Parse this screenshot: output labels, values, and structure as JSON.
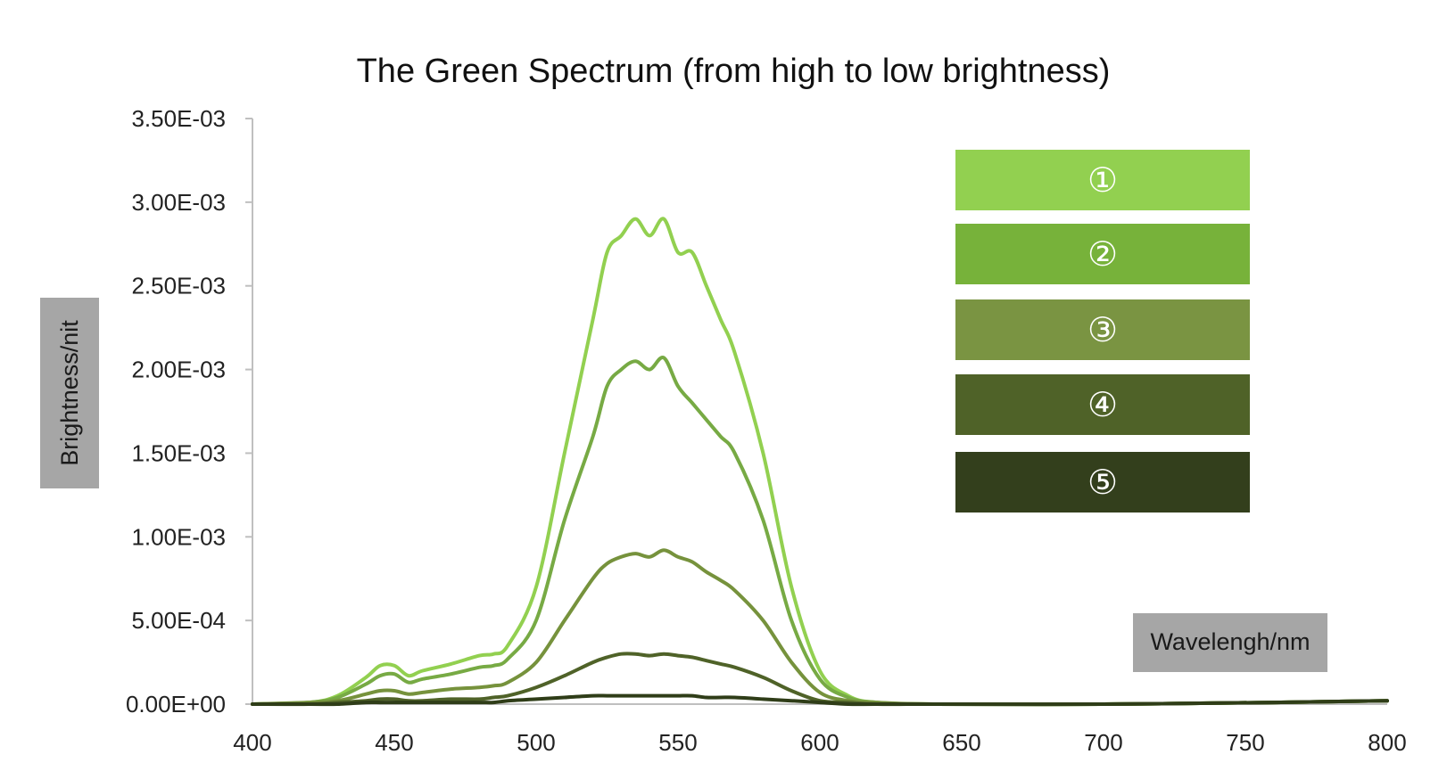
{
  "chart_data": {
    "type": "line",
    "title": "The Green Spectrum (from high to low brightness)",
    "xlabel": "Wavelengh/nm",
    "ylabel": "Brightness/nit",
    "xlim": [
      400,
      800
    ],
    "ylim": [
      0,
      0.0035
    ],
    "x_ticks": [
      400,
      450,
      500,
      550,
      600,
      650,
      700,
      750,
      800
    ],
    "x_tick_labels": [
      "400",
      "450",
      "500",
      "550",
      "600",
      "650",
      "700",
      "750",
      "800"
    ],
    "y_ticks": [
      0,
      0.0005,
      0.001,
      0.0015,
      0.002,
      0.0025,
      0.003,
      0.0035
    ],
    "y_tick_labels": [
      "0.00E+00",
      "5.00E-04",
      "1.00E-03",
      "1.50E-03",
      "2.00E-03",
      "2.50E-03",
      "3.00E-03",
      "3.50E-03"
    ],
    "grid": false,
    "legend_position": "top-right",
    "x": [
      400,
      420,
      430,
      440,
      445,
      450,
      455,
      460,
      470,
      480,
      485,
      490,
      500,
      510,
      520,
      525,
      530,
      535,
      540,
      545,
      550,
      555,
      560,
      565,
      570,
      580,
      590,
      600,
      610,
      620,
      640,
      700,
      760,
      800
    ],
    "series": [
      {
        "name": "①",
        "color": "#92d050",
        "values": [
          0.0,
          1e-05,
          5e-05,
          0.00016,
          0.00023,
          0.00023,
          0.00017,
          0.0002,
          0.00024,
          0.00029,
          0.0003,
          0.00035,
          0.0007,
          0.0015,
          0.0023,
          0.0027,
          0.0028,
          0.0029,
          0.0028,
          0.0029,
          0.0027,
          0.0027,
          0.0025,
          0.0023,
          0.0021,
          0.0015,
          0.0007,
          0.0002,
          5e-05,
          1e-05,
          0.0,
          0.0,
          1e-05,
          2e-05
        ]
      },
      {
        "name": "②",
        "color": "#77aa44",
        "values": [
          0.0,
          1e-05,
          4e-05,
          0.00012,
          0.00017,
          0.00018,
          0.00013,
          0.00015,
          0.00018,
          0.00022,
          0.00023,
          0.00027,
          0.0005,
          0.0011,
          0.0016,
          0.0019,
          0.002,
          0.00205,
          0.002,
          0.00207,
          0.0019,
          0.0018,
          0.0017,
          0.0016,
          0.0015,
          0.0011,
          0.0005,
          0.00015,
          4e-05,
          1e-05,
          0.0,
          0.0,
          1e-05,
          2e-05
        ]
      },
      {
        "name": "③",
        "color": "#76923c",
        "values": [
          0.0,
          1e-05,
          2e-05,
          6e-05,
          8e-05,
          8e-05,
          6e-05,
          7e-05,
          9e-05,
          0.0001,
          0.00011,
          0.00013,
          0.00025,
          0.0005,
          0.00075,
          0.00084,
          0.00088,
          0.0009,
          0.00088,
          0.00092,
          0.00088,
          0.00085,
          0.00079,
          0.00074,
          0.00068,
          0.0005,
          0.00025,
          7e-05,
          2e-05,
          1e-05,
          0.0,
          0.0,
          1e-05,
          2e-05
        ]
      },
      {
        "name": "④",
        "color": "#4f6228",
        "values": [
          0.0,
          0.0,
          1e-05,
          2e-05,
          3e-05,
          3e-05,
          2e-05,
          2e-05,
          3e-05,
          3e-05,
          4e-05,
          5e-05,
          0.0001,
          0.00017,
          0.00025,
          0.00028,
          0.0003,
          0.0003,
          0.00029,
          0.0003,
          0.00029,
          0.00028,
          0.00026,
          0.00024,
          0.00022,
          0.00016,
          8e-05,
          2e-05,
          1e-05,
          0.0,
          0.0,
          0.0,
          1e-05,
          2e-05
        ]
      },
      {
        "name": "⑤",
        "color": "#2f3d18",
        "values": [
          0.0,
          0.0,
          0.0,
          1e-05,
          1e-05,
          1e-05,
          1e-05,
          1e-05,
          1e-05,
          1e-05,
          1e-05,
          2e-05,
          3e-05,
          4e-05,
          5e-05,
          5e-05,
          5e-05,
          5e-05,
          5e-05,
          5e-05,
          5e-05,
          5e-05,
          4e-05,
          4e-05,
          4e-05,
          3e-05,
          2e-05,
          1e-05,
          0.0,
          0.0,
          0.0,
          0.0,
          1e-05,
          2e-05
        ]
      }
    ],
    "legend_colors": [
      "#92d050",
      "#77b23a",
      "#7a9442",
      "#4f6228",
      "#333f1c"
    ]
  }
}
